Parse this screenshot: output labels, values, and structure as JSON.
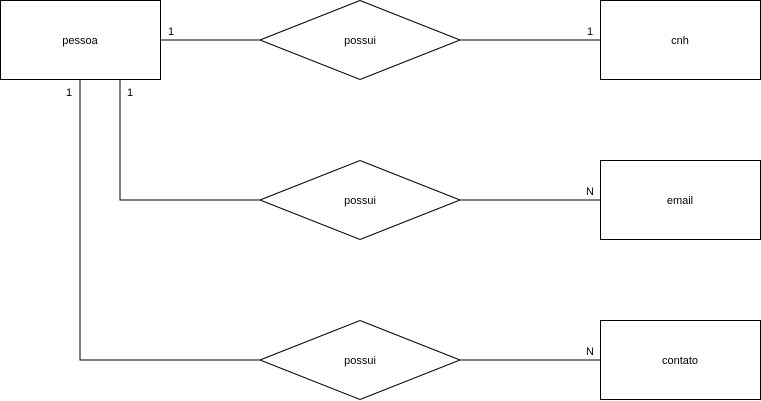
{
  "entities": {
    "pessoa": "pessoa",
    "cnh": "cnh",
    "email": "email",
    "contato": "contato"
  },
  "relationships": {
    "pessoa_cnh": "possui",
    "pessoa_email": "possui",
    "pessoa_contato": "possui"
  },
  "cardinalities": {
    "pessoa_cnh_left": "1",
    "pessoa_cnh_right": "1",
    "pessoa_email_left": "1",
    "pessoa_email_right": "N",
    "pessoa_contato_left": "1",
    "pessoa_contato_right": "N"
  },
  "colors": {
    "stroke": "#000000",
    "fill": "#ffffff"
  }
}
